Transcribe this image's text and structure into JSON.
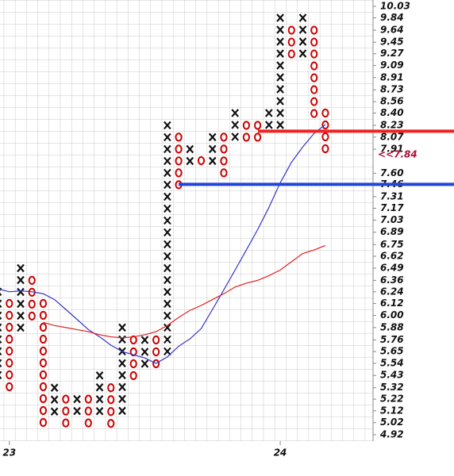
{
  "chart_data": {
    "type": "point_and_figure",
    "ylim": [
      4.92,
      10.03
    ],
    "log_scale": true,
    "yticks": [
      10.03,
      9.84,
      9.64,
      9.45,
      9.27,
      9.09,
      8.91,
      8.73,
      8.56,
      {
        "value": 8.4,
        "label": "8.40"
      },
      8.23,
      8.07,
      7.91,
      {
        "value": 7.6,
        "label": "7.60"
      },
      7.46,
      7.31,
      7.17,
      7.03,
      6.89,
      6.75,
      6.62,
      6.49,
      6.36,
      6.24,
      6.12,
      {
        "value": 6,
        "label": "6.00"
      },
      5.88,
      5.76,
      5.65,
      5.54,
      5.43,
      5.32,
      5.22,
      5.12,
      5.02,
      4.92
    ],
    "x_color": "#111111",
    "o_color": "#cc0000",
    "columns": [
      {
        "type": "X",
        "high": 6.24,
        "low": 5.43
      },
      {
        "type": "O",
        "high": 6.12,
        "low": 5.32,
        "label": "23"
      },
      {
        "type": "X",
        "high": 6.49,
        "low": 5.88
      },
      {
        "type": "O",
        "high": 6.36,
        "low": 6.0
      },
      {
        "type": "O",
        "high": 6.12,
        "low": 5.02
      },
      {
        "type": "X",
        "high": 5.32,
        "low": 5.12
      },
      {
        "type": "O",
        "high": 5.22,
        "low": 5.02
      },
      {
        "type": "X",
        "high": 5.22,
        "low": 5.12
      },
      {
        "type": "O",
        "high": 5.22,
        "low": 5.02
      },
      {
        "type": "X",
        "high": 5.43,
        "low": 5.12
      },
      {
        "type": "O",
        "high": 5.32,
        "low": 5.02
      },
      {
        "type": "X",
        "high": 5.88,
        "low": 5.12
      },
      {
        "type": "O",
        "high": 5.76,
        "low": 5.43
      },
      {
        "type": "X",
        "high": 5.76,
        "low": 5.54
      },
      {
        "type": "O",
        "high": 5.76,
        "low": 5.54
      },
      {
        "type": "X",
        "high": 8.23,
        "low": 5.65
      },
      {
        "type": "O",
        "high": 8.07,
        "low": 7.46
      },
      {
        "type": "X",
        "high": 7.91,
        "low": 7.76
      },
      {
        "type": "O",
        "high": 7.76,
        "low": 7.76
      },
      {
        "type": "X",
        "high": 8.07,
        "low": 7.76
      },
      {
        "type": "O",
        "high": 8.07,
        "low": 7.6
      },
      {
        "type": "X",
        "high": 8.4,
        "low": 8.07
      },
      {
        "type": "O",
        "high": 8.23,
        "low": 8.07
      },
      {
        "type": "O",
        "high": 8.23,
        "low": 8.07
      },
      {
        "type": "X",
        "high": 8.4,
        "low": 8.23
      },
      {
        "type": "X",
        "high": 9.84,
        "low": 8.23,
        "label": "24"
      },
      {
        "type": "O",
        "high": 9.64,
        "low": 9.27
      },
      {
        "type": "X",
        "high": 9.84,
        "low": 9.27
      },
      {
        "type": "O",
        "high": 9.64,
        "low": 8.4
      },
      {
        "type": "O",
        "high": 8.4,
        "low": 7.91
      }
    ],
    "moving_averages": [
      {
        "color": "#3333cc",
        "values": [
          6.27,
          6.24,
          6.25,
          6.24,
          6.22,
          6.16,
          6.06,
          5.96,
          5.86,
          5.79,
          5.71,
          5.65,
          5.62,
          5.59,
          5.54,
          5.6,
          5.7,
          5.77,
          5.87,
          6.06,
          6.26,
          6.47,
          6.69,
          6.92,
          7.18,
          7.48,
          7.74,
          7.94,
          8.12,
          8.24
        ]
      },
      {
        "color": "#dd2222",
        "values": [
          null,
          null,
          null,
          null,
          5.93,
          5.9,
          5.88,
          5.86,
          5.84,
          5.81,
          5.79,
          5.78,
          5.79,
          5.81,
          5.84,
          5.9,
          5.98,
          6.05,
          6.1,
          6.16,
          6.22,
          6.29,
          6.33,
          6.36,
          6.41,
          6.47,
          6.56,
          6.65,
          6.69,
          6.74
        ]
      }
    ],
    "levels": [
      {
        "value": 8.15,
        "color": "#ee2222"
      },
      {
        "value": 7.46,
        "color": "#2244dd"
      }
    ],
    "last_price": {
      "value": 7.84,
      "label": "<<7.84",
      "color": "#b0103a"
    }
  }
}
